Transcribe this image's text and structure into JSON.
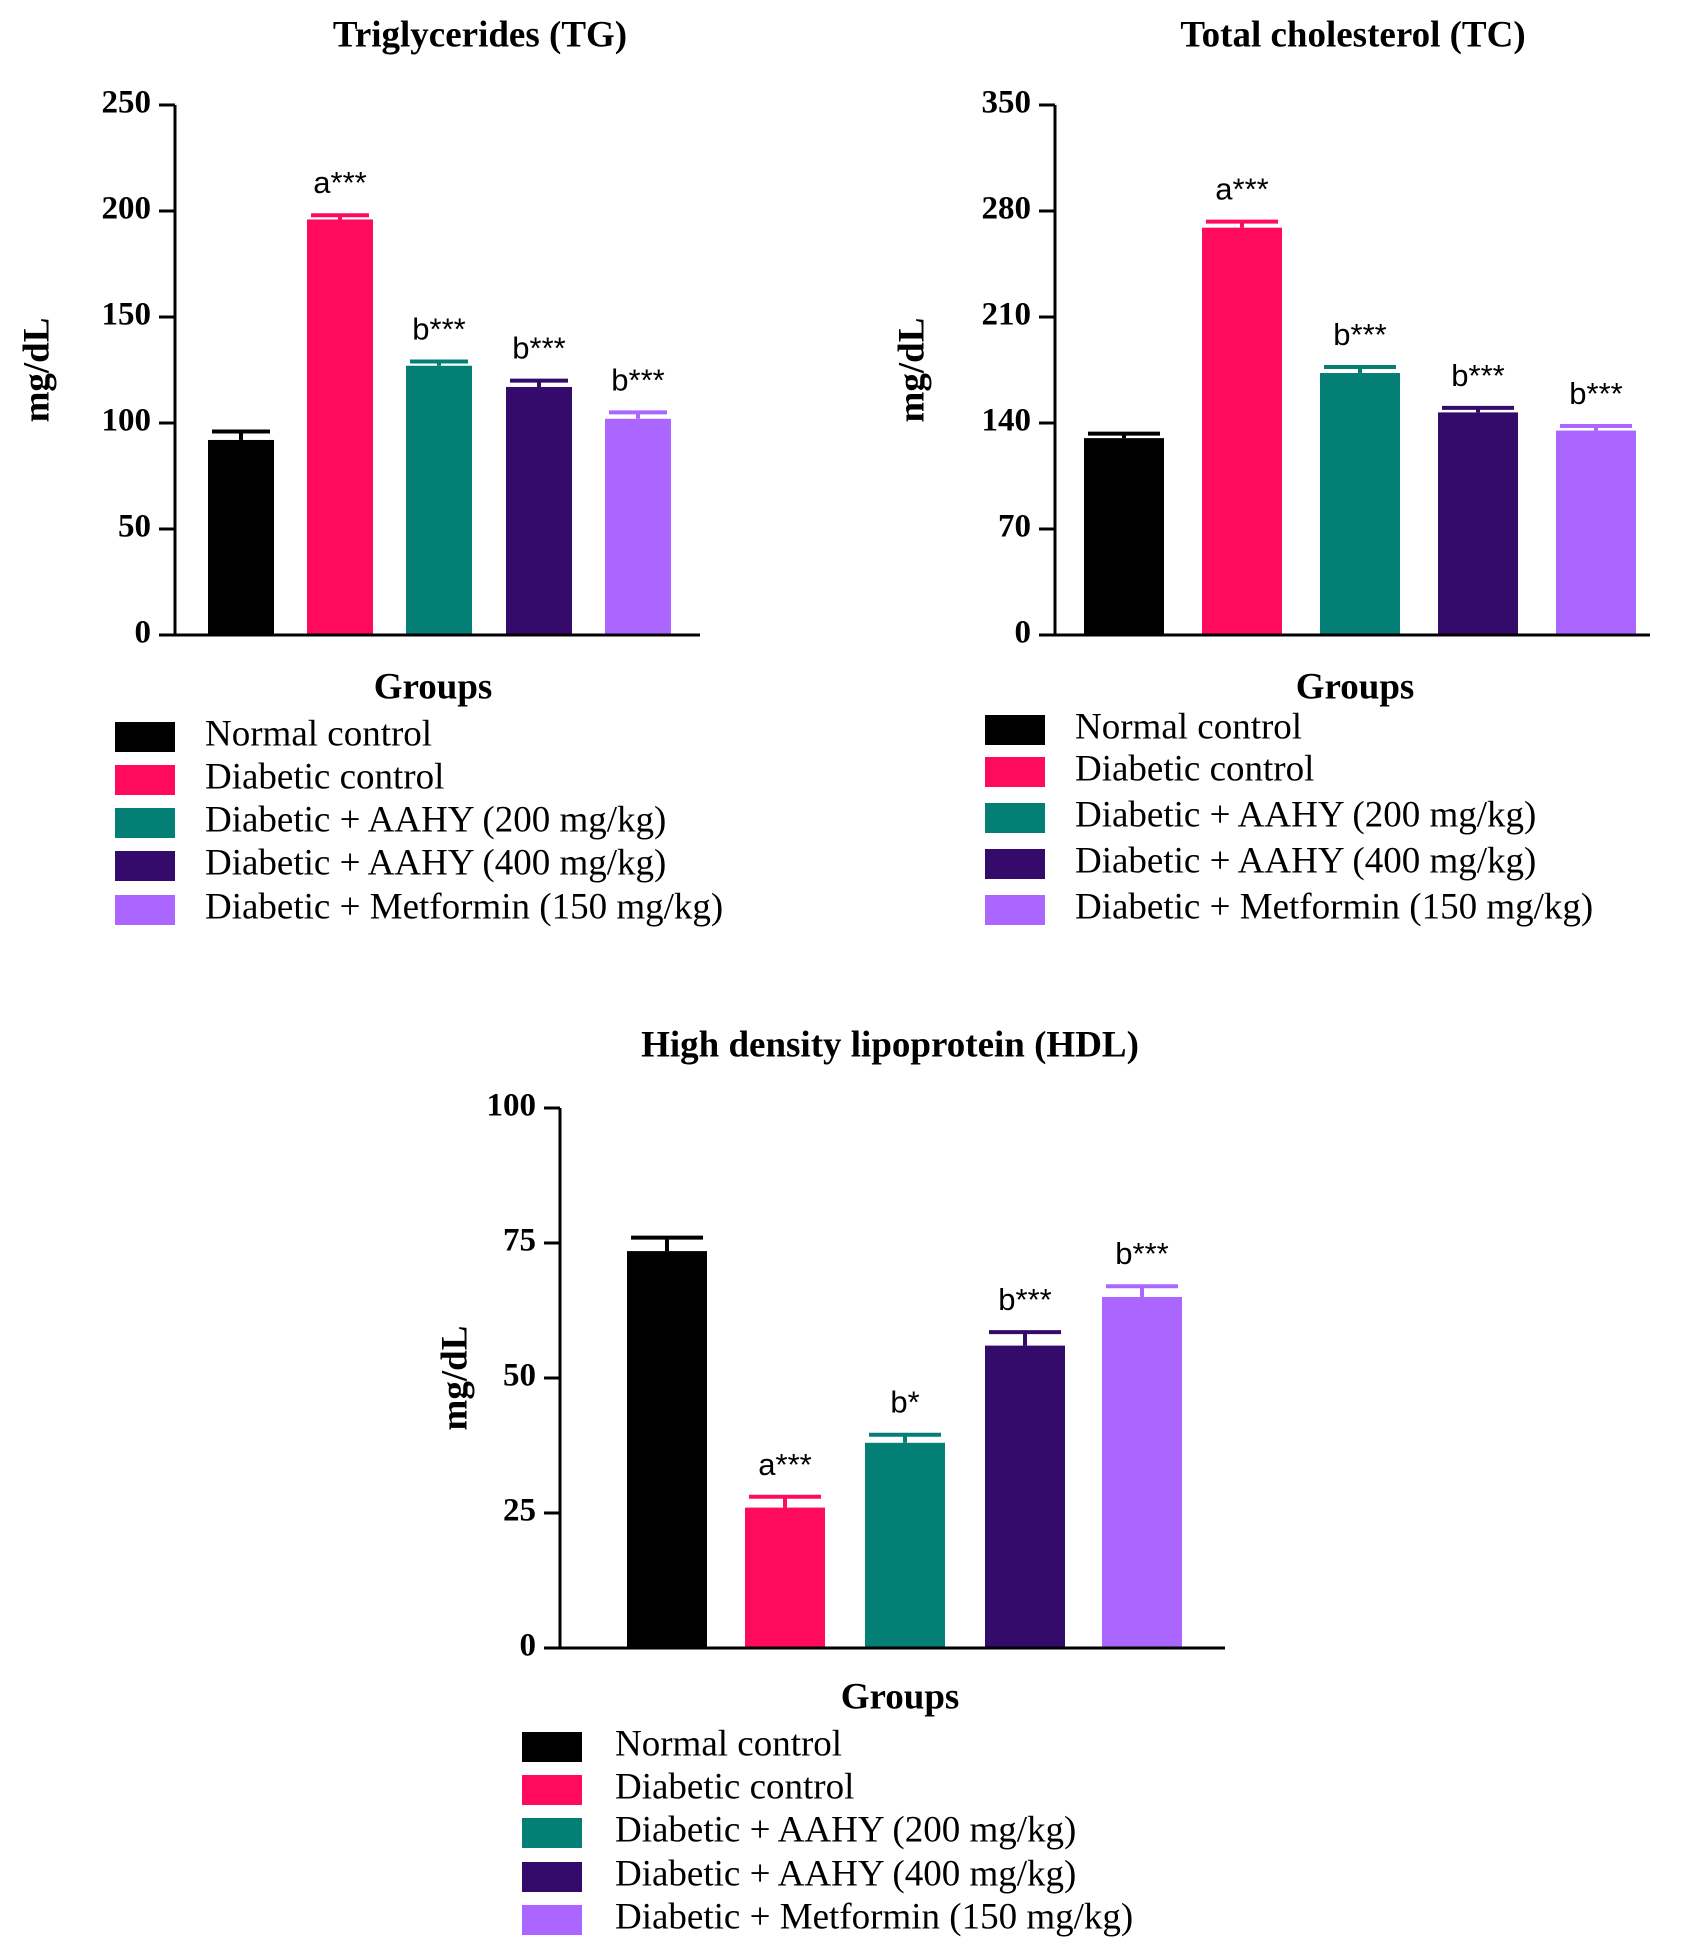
{
  "groups": [
    "Normal control",
    "Diabetic control",
    "Diabetic + AAHY (200 mg/kg)",
    "Diabetic + AAHY (400 mg/kg)",
    "Diabetic + Metformin (150 mg/kg)"
  ],
  "colors": [
    "#000000",
    "#ff0a5c",
    "#037f76",
    "#340a6a",
    "#aa66ff"
  ],
  "chart_data": [
    {
      "type": "bar",
      "title": "Triglycerides (TG)",
      "xlabel": "Groups",
      "ylabel": "mg/dL",
      "ylim": [
        0,
        250
      ],
      "yticks": [
        0,
        50,
        100,
        150,
        200,
        250
      ],
      "categories": [
        "Normal control",
        "Diabetic control",
        "Diabetic + AAHY (200 mg/kg)",
        "Diabetic + AAHY (400 mg/kg)",
        "Diabetic + Metformin (150 mg/kg)"
      ],
      "values": [
        92,
        196,
        127,
        117,
        102
      ],
      "errors": [
        4,
        2,
        2,
        3,
        3
      ],
      "annotations": [
        "",
        "a***",
        "b***",
        "b***",
        "b***"
      ],
      "legend": "below"
    },
    {
      "type": "bar",
      "title": "Total cholesterol (TC)",
      "xlabel": "Groups",
      "ylabel": "mg/dL",
      "ylim": [
        0,
        350
      ],
      "yticks": [
        0,
        70,
        140,
        210,
        280,
        350
      ],
      "categories": [
        "Normal control",
        "Diabetic control",
        "Diabetic + AAHY (200 mg/kg)",
        "Diabetic + AAHY (400 mg/kg)",
        "Diabetic + Metformin (150 mg/kg)"
      ],
      "values": [
        130,
        269,
        173,
        147,
        135
      ],
      "errors": [
        3,
        4,
        4,
        3,
        3
      ],
      "annotations": [
        "",
        "a***",
        "b***",
        "b***",
        "b***"
      ],
      "legend": "below"
    },
    {
      "type": "bar",
      "title": "High density lipoprotein (HDL)",
      "xlabel": "Groups",
      "ylabel": "mg/dL",
      "ylim": [
        0,
        100
      ],
      "yticks": [
        0,
        25,
        50,
        75,
        100
      ],
      "categories": [
        "Normal control",
        "Diabetic control",
        "Diabetic + AAHY (200 mg/kg)",
        "Diabetic + AAHY (400 mg/kg)",
        "Diabetic + Metformin (150 mg/kg)"
      ],
      "values": [
        73.5,
        26,
        38,
        56,
        65
      ],
      "errors": [
        2.5,
        2,
        1.5,
        2.5,
        2
      ],
      "annotations": [
        "",
        "a***",
        "b*",
        "b***",
        "b***"
      ],
      "legend": "below"
    }
  ]
}
